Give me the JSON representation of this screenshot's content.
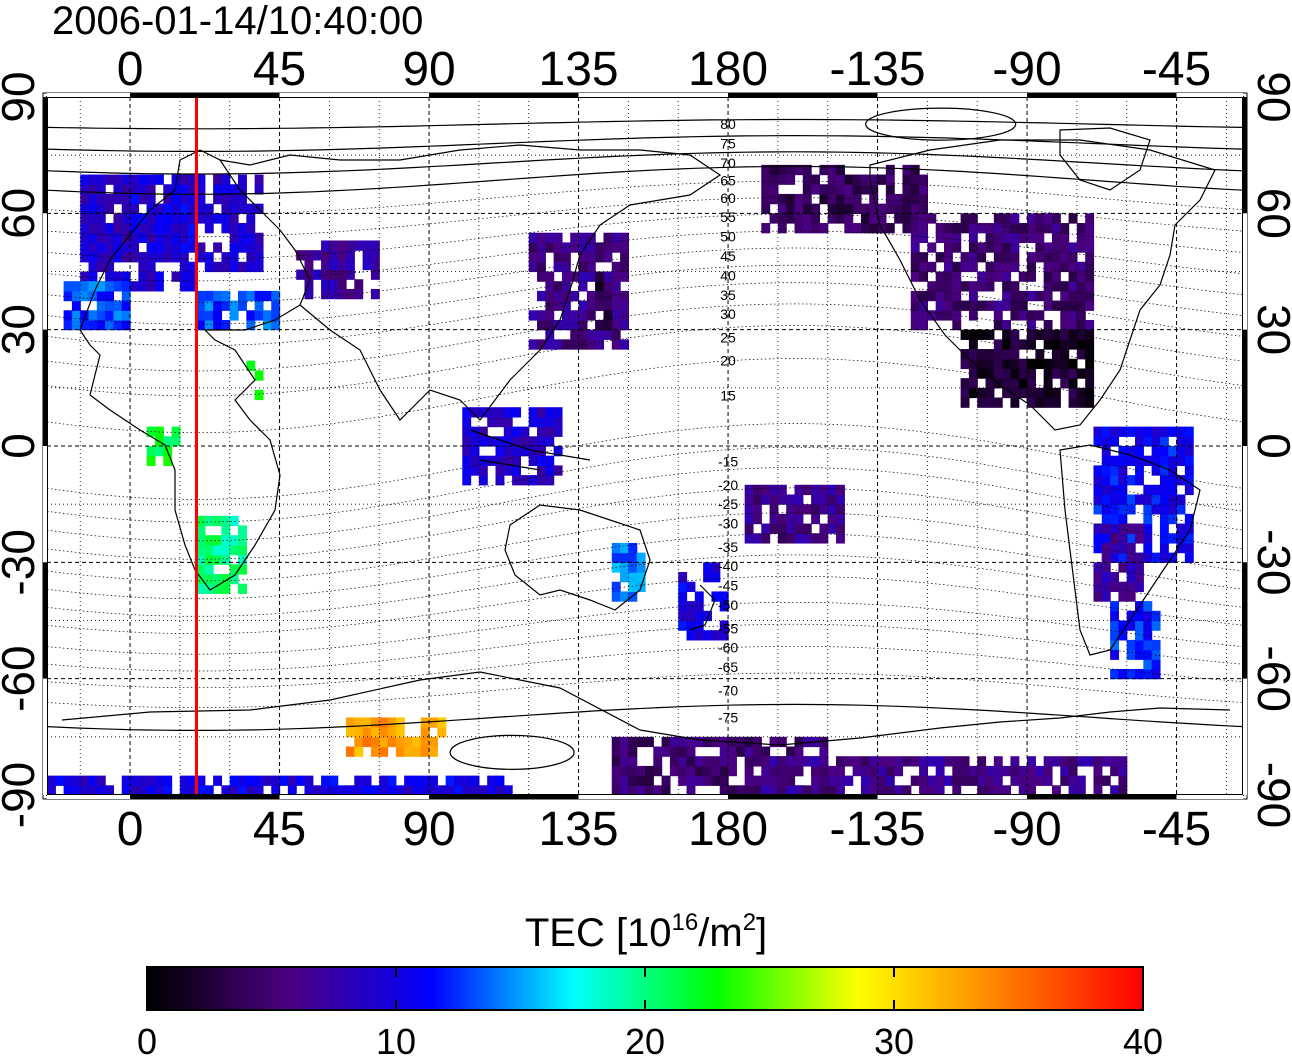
{
  "header": {
    "timestamp": "2006-01-14/10:40:00"
  },
  "map": {
    "projection": "equirectangular",
    "center_longitude": 130,
    "lon_range": [
      -25,
      335
    ],
    "lat_range": [
      -90,
      90
    ],
    "lon_tick_labels": [
      "0",
      "45",
      "90",
      "135",
      "180",
      "-135",
      "-90",
      "-45"
    ],
    "lon_tick_values": [
      0,
      45,
      90,
      135,
      180,
      225,
      270,
      315
    ],
    "lat_tick_labels": [
      "90",
      "60",
      "30",
      "0",
      "-30",
      "-60",
      "-90"
    ],
    "lat_tick_values": [
      90,
      60,
      30,
      0,
      -30,
      -60,
      -90
    ],
    "grid": "dotted, 15 degree",
    "marker_line": {
      "longitude": 20,
      "color": "#ff0000"
    }
  },
  "magnetic_latitude_contours": {
    "label_longitude": 180,
    "labels": [
      {
        "text": "80",
        "lat": 83
      },
      {
        "text": "75",
        "lat": 78
      },
      {
        "text": "70",
        "lat": 73
      },
      {
        "text": "65",
        "lat": 68.5
      },
      {
        "text": "60",
        "lat": 64
      },
      {
        "text": "55",
        "lat": 59
      },
      {
        "text": "50",
        "lat": 54
      },
      {
        "text": "45",
        "lat": 49
      },
      {
        "text": "40",
        "lat": 44
      },
      {
        "text": "35",
        "lat": 39
      },
      {
        "text": "30",
        "lat": 34
      },
      {
        "text": "25",
        "lat": 28
      },
      {
        "text": "20",
        "lat": 22
      },
      {
        "text": "15",
        "lat": 13
      },
      {
        "text": "-15",
        "lat": -4
      },
      {
        "text": "-20",
        "lat": -10
      },
      {
        "text": "-25",
        "lat": -15
      },
      {
        "text": "-30",
        "lat": -20
      },
      {
        "text": "-35",
        "lat": -26
      },
      {
        "text": "-40",
        "lat": -31
      },
      {
        "text": "-45",
        "lat": -36
      },
      {
        "text": "-50",
        "lat": -41
      },
      {
        "text": "-55",
        "lat": -47
      },
      {
        "text": "-60",
        "lat": -52
      },
      {
        "text": "-65",
        "lat": -57
      },
      {
        "text": "-70",
        "lat": -63
      },
      {
        "text": "-75",
        "lat": -70
      }
    ]
  },
  "colorbar": {
    "title_prefix": "TEC  [10",
    "title_exp1": "16",
    "title_mid": "/m",
    "title_exp2": "2",
    "title_suffix": "]",
    "min": 0,
    "max": 40,
    "tick_labels": [
      "0",
      "10",
      "20",
      "30",
      "40"
    ],
    "tick_values": [
      0,
      10,
      20,
      30,
      40
    ],
    "colors": [
      "#000000",
      "#4b0082",
      "#0000ff",
      "#00ffff",
      "#00ff00",
      "#ffff00",
      "#ff7f00",
      "#ff0000"
    ]
  },
  "chart_data": {
    "type": "heatmap",
    "value_name": "TEC",
    "value_range": [
      0,
      40
    ],
    "regions": [
      {
        "lon": [
          -15,
          20
        ],
        "lat": [
          40,
          70
        ],
        "tec": 9
      },
      {
        "lon": [
          0,
          20
        ],
        "lat": [
          50,
          65
        ],
        "tec": 10
      },
      {
        "lon": [
          20,
          40
        ],
        "lat": [
          45,
          70
        ],
        "tec": 9
      },
      {
        "lon": [
          -20,
          0
        ],
        "lat": [
          30,
          42
        ],
        "tec": 13
      },
      {
        "lon": [
          20,
          45
        ],
        "lat": [
          30,
          40
        ],
        "tec": 13
      },
      {
        "lon": [
          35,
          40
        ],
        "lat": [
          12,
          22
        ],
        "tec": 23
      },
      {
        "lon": [
          5,
          15
        ],
        "lat": [
          -5,
          5
        ],
        "tec": 22
      },
      {
        "lon": [
          20,
          35
        ],
        "lat": [
          -38,
          -20
        ],
        "tec": 20
      },
      {
        "lon": [
          50,
          75
        ],
        "lat": [
          38,
          52
        ],
        "tec": 7
      },
      {
        "lon": [
          120,
          150
        ],
        "lat": [
          25,
          55
        ],
        "tec": 6
      },
      {
        "lon": [
          140,
          145
        ],
        "lat": [
          30,
          45
        ],
        "tec": 3
      },
      {
        "lon": [
          100,
          130
        ],
        "lat": [
          -10,
          10
        ],
        "tec": 9
      },
      {
        "lon": [
          145,
          155
        ],
        "lat": [
          -40,
          -25
        ],
        "tec": 14
      },
      {
        "lon": [
          165,
          180
        ],
        "lat": [
          -50,
          -30
        ],
        "tec": 10
      },
      {
        "lon": [
          185,
          215
        ],
        "lat": [
          -25,
          -10
        ],
        "tec": 6
      },
      {
        "lon": [
          190,
          240
        ],
        "lat": [
          55,
          72
        ],
        "tec": 4
      },
      {
        "lon": [
          235,
          290
        ],
        "lat": [
          30,
          60
        ],
        "tec": 5
      },
      {
        "lon": [
          250,
          290
        ],
        "lat": [
          10,
          30
        ],
        "tec": 2
      },
      {
        "lon": [
          290,
          320
        ],
        "lat": [
          -30,
          5
        ],
        "tec": 11
      },
      {
        "lon": [
          290,
          305
        ],
        "lat": [
          -40,
          -20
        ],
        "tec": 7
      },
      {
        "lon": [
          295,
          310
        ],
        "lat": [
          -60,
          -40
        ],
        "tec": 12
      },
      {
        "lon": [
          145,
          210
        ],
        "lat": [
          -90,
          -75
        ],
        "tec": 5
      },
      {
        "lon": [
          -25,
          115
        ],
        "lat": [
          -90,
          -87
        ],
        "tec": 10
      },
      {
        "lon": [
          190,
          300
        ],
        "lat": [
          -90,
          -80
        ],
        "tec": 6
      },
      {
        "lon": [
          65,
          95
        ],
        "lat": [
          -80,
          -72
        ],
        "tec": 33
      }
    ]
  }
}
